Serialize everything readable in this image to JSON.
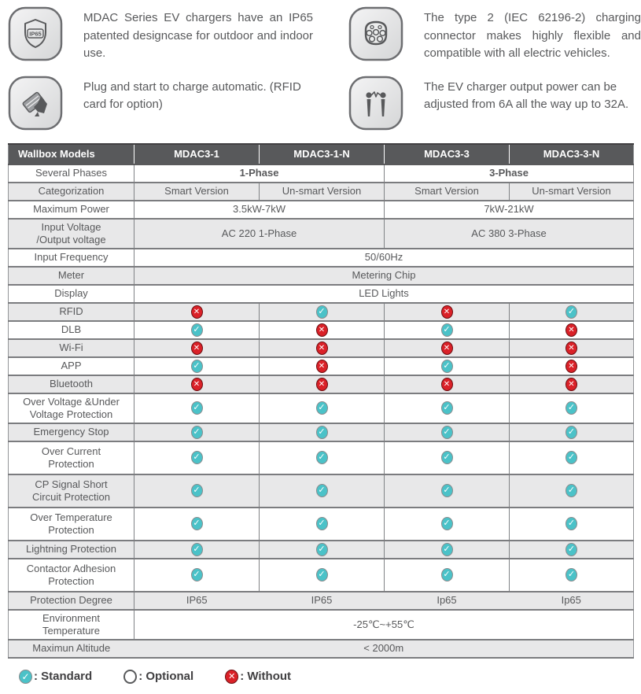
{
  "features": [
    {
      "icon": "ip65-shield-icon",
      "text": "MDAC Series EV chargers have an IP65 patented designcase for outdoor and indoor use."
    },
    {
      "icon": "type2-connector-icon",
      "text": "The type 2 (IEC 62196-2) charging connector makes highly flexible and compatible with all electric vehicles."
    },
    {
      "icon": "rfid-card-hand-icon",
      "text": "Plug and start to charge automatic. (RFID card for option)"
    },
    {
      "icon": "adjustable-power-icon",
      "text": "The EV charger output power can be adjusted from 6A all the way up to 32A."
    }
  ],
  "icon_badge_text": "IP65",
  "table": {
    "header": [
      "Wallbox Models",
      "MDAC3-1",
      "MDAC3-1-N",
      "MDAC3-3",
      "MDAC3-3-N"
    ],
    "rows": [
      {
        "label": "Several Phases",
        "shade": false,
        "cells": [
          {
            "t": "text",
            "v": "1-Phase",
            "span": 2,
            "bold": true
          },
          {
            "t": "text",
            "v": "3-Phase",
            "span": 2,
            "bold": true
          }
        ]
      },
      {
        "label": "Categorization",
        "shade": true,
        "cells": [
          {
            "t": "text",
            "v": "Smart Version"
          },
          {
            "t": "text",
            "v": "Un-smart Version"
          },
          {
            "t": "text",
            "v": "Smart Version"
          },
          {
            "t": "text",
            "v": "Un-smart Version"
          }
        ]
      },
      {
        "label": "Maximum Power",
        "shade": false,
        "cells": [
          {
            "t": "text",
            "v": "3.5kW-7kW",
            "span": 2
          },
          {
            "t": "text",
            "v": "7kW-21kW",
            "span": 2
          }
        ]
      },
      {
        "label": "Input Voltage\n/Output voltage",
        "shade": true,
        "cells": [
          {
            "t": "text",
            "v": "AC 220 1-Phase",
            "span": 2
          },
          {
            "t": "text",
            "v": "AC 380 3-Phase",
            "span": 2
          }
        ]
      },
      {
        "label": "Input Frequency",
        "shade": false,
        "cells": [
          {
            "t": "text",
            "v": "50/60Hz",
            "span": 4
          }
        ]
      },
      {
        "label": "Meter",
        "shade": true,
        "cells": [
          {
            "t": "text",
            "v": "Metering Chip",
            "span": 4
          }
        ]
      },
      {
        "label": "Display",
        "shade": false,
        "cells": [
          {
            "t": "text",
            "v": "LED Lights",
            "span": 4
          }
        ]
      },
      {
        "label": "RFID",
        "shade": true,
        "cells": [
          {
            "t": "no"
          },
          {
            "t": "yes"
          },
          {
            "t": "no"
          },
          {
            "t": "yes"
          }
        ]
      },
      {
        "label": "DLB",
        "shade": false,
        "cells": [
          {
            "t": "yes"
          },
          {
            "t": "no"
          },
          {
            "t": "yes"
          },
          {
            "t": "no"
          }
        ]
      },
      {
        "label": "Wi-Fi",
        "shade": true,
        "cells": [
          {
            "t": "no"
          },
          {
            "t": "no"
          },
          {
            "t": "no"
          },
          {
            "t": "no"
          }
        ]
      },
      {
        "label": "APP",
        "shade": false,
        "cells": [
          {
            "t": "yes"
          },
          {
            "t": "no"
          },
          {
            "t": "yes"
          },
          {
            "t": "no"
          }
        ]
      },
      {
        "label": "Bluetooth",
        "shade": true,
        "cells": [
          {
            "t": "no"
          },
          {
            "t": "no"
          },
          {
            "t": "no"
          },
          {
            "t": "no"
          }
        ]
      },
      {
        "label": "Over Voltage &Under\nVoltage Protection",
        "shade": false,
        "cells": [
          {
            "t": "yes"
          },
          {
            "t": "yes"
          },
          {
            "t": "yes"
          },
          {
            "t": "yes"
          }
        ]
      },
      {
        "label": "Emergency Stop",
        "shade": true,
        "cells": [
          {
            "t": "yes"
          },
          {
            "t": "yes"
          },
          {
            "t": "yes"
          },
          {
            "t": "yes"
          }
        ]
      },
      {
        "label": "Over Current\nProtection",
        "shade": false,
        "tall": true,
        "cells": [
          {
            "t": "yes"
          },
          {
            "t": "yes"
          },
          {
            "t": "yes"
          },
          {
            "t": "yes"
          }
        ]
      },
      {
        "label": "CP Signal Short\nCircuit Protection",
        "shade": true,
        "tall": true,
        "cells": [
          {
            "t": "yes"
          },
          {
            "t": "yes"
          },
          {
            "t": "yes"
          },
          {
            "t": "yes"
          }
        ]
      },
      {
        "label": "Over Temperature\nProtection",
        "shade": false,
        "tall": true,
        "cells": [
          {
            "t": "yes"
          },
          {
            "t": "yes"
          },
          {
            "t": "yes"
          },
          {
            "t": "yes"
          }
        ]
      },
      {
        "label": "Lightning Protection",
        "shade": true,
        "cells": [
          {
            "t": "yes"
          },
          {
            "t": "yes"
          },
          {
            "t": "yes"
          },
          {
            "t": "yes"
          }
        ]
      },
      {
        "label": "Contactor Adhesion\nProtection",
        "shade": false,
        "tall": true,
        "cells": [
          {
            "t": "yes"
          },
          {
            "t": "yes"
          },
          {
            "t": "yes"
          },
          {
            "t": "yes"
          }
        ]
      },
      {
        "label": "Protection Degree",
        "shade": true,
        "no_vborders": true,
        "cells": [
          {
            "t": "text",
            "v": "IP65"
          },
          {
            "t": "text",
            "v": "IP65"
          },
          {
            "t": "text",
            "v": "Ip65"
          },
          {
            "t": "text",
            "v": "Ip65"
          }
        ]
      },
      {
        "label": "Environment\nTemperature",
        "shade": false,
        "cells": [
          {
            "t": "text",
            "v": "-25℃~+55℃",
            "span": 4
          }
        ]
      },
      {
        "label": "Maximun Altitude",
        "shade": true,
        "no_sep": true,
        "cells": [
          {
            "t": "text",
            "v": "< 2000m",
            "span": 4
          }
        ]
      }
    ]
  },
  "legend": {
    "items": [
      {
        "icon": "check-circle-icon",
        "mark": "yes",
        "label": ": Standard"
      },
      {
        "icon": "empty-circle-icon",
        "mark": "opt",
        "label": ": Optional"
      },
      {
        "icon": "cross-circle-icon",
        "mark": "no",
        "label": ": Without"
      }
    ]
  },
  "colors": {
    "accent_teal": "#4BC2C8",
    "accent_red": "#DA2128",
    "header_bg": "#58595B",
    "row_shade": "#E8E8E9"
  }
}
